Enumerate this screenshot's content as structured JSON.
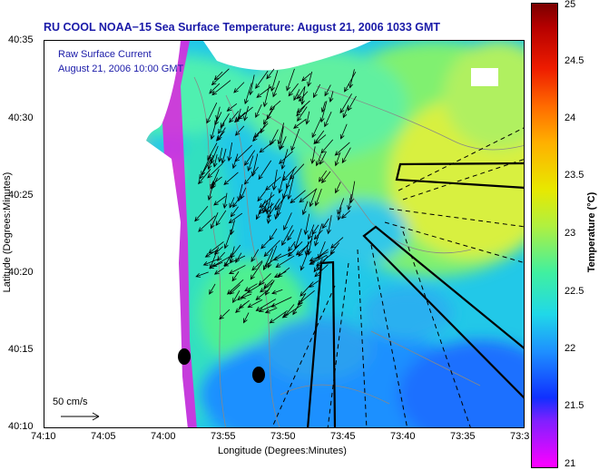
{
  "title": "RU COOL  NOAA−15  Sea Surface Temperature:  August 21, 2006 1033 GMT",
  "overlay": {
    "line1": "Raw Surface Current",
    "line2": "August 21, 2006 10:00 GMT"
  },
  "scale": {
    "label": "50 cm/s"
  },
  "axes": {
    "xlabel": "Longitude (Degrees:Minutes)",
    "ylabel": "Latitude (Degrees:Minutes)",
    "xticks": [
      "74:10",
      "74:05",
      "74:00",
      "73:55",
      "73:50",
      "73:45",
      "73:40",
      "73:35",
      "73:3"
    ],
    "yticks": [
      "40:35",
      "40:30",
      "40:25",
      "40:20",
      "40:15",
      "40:10"
    ]
  },
  "colorbar": {
    "title": "Temperature (°C)",
    "ticks": [
      "25",
      "24.5",
      "24",
      "23.5",
      "23",
      "22.5",
      "22",
      "21.5",
      "21"
    ],
    "colors": [
      "#7a0000",
      "#ee1c00",
      "#ffb000",
      "#e8e800",
      "#40f0a0",
      "#20d8e8",
      "#1e90ff",
      "#8020ff",
      "#ff00ff"
    ]
  },
  "colors": {
    "land": "#ffffff",
    "text_blue": "#1a1aa8"
  }
}
